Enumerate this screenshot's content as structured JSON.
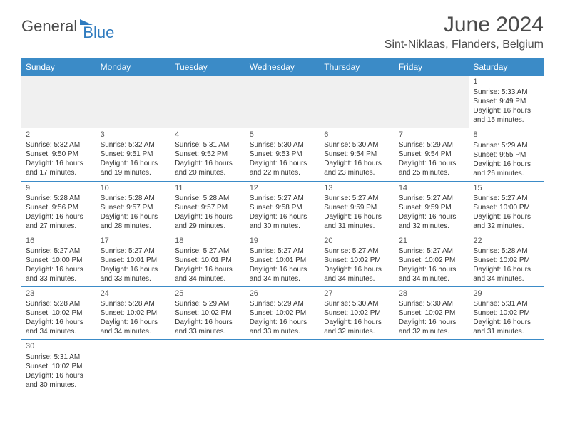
{
  "logo": {
    "part1": "General",
    "part2": "Blue"
  },
  "title": "June 2024",
  "location": "Sint-Niklaas, Flanders, Belgium",
  "colors": {
    "header_bg": "#3b8bc7",
    "header_fg": "#ffffff",
    "cell_border": "#3b8bc7",
    "text": "#333333",
    "logo_gray": "#4a4a4a",
    "logo_blue": "#2f7bbf",
    "spacer_bg": "#f0f0f0"
  },
  "daynames": [
    "Sunday",
    "Monday",
    "Tuesday",
    "Wednesday",
    "Thursday",
    "Friday",
    "Saturday"
  ],
  "weeks": [
    [
      null,
      null,
      null,
      null,
      null,
      null,
      {
        "n": "1",
        "sr": "Sunrise: 5:33 AM",
        "ss": "Sunset: 9:49 PM",
        "d1": "Daylight: 16 hours",
        "d2": "and 15 minutes."
      }
    ],
    [
      {
        "n": "2",
        "sr": "Sunrise: 5:32 AM",
        "ss": "Sunset: 9:50 PM",
        "d1": "Daylight: 16 hours",
        "d2": "and 17 minutes."
      },
      {
        "n": "3",
        "sr": "Sunrise: 5:32 AM",
        "ss": "Sunset: 9:51 PM",
        "d1": "Daylight: 16 hours",
        "d2": "and 19 minutes."
      },
      {
        "n": "4",
        "sr": "Sunrise: 5:31 AM",
        "ss": "Sunset: 9:52 PM",
        "d1": "Daylight: 16 hours",
        "d2": "and 20 minutes."
      },
      {
        "n": "5",
        "sr": "Sunrise: 5:30 AM",
        "ss": "Sunset: 9:53 PM",
        "d1": "Daylight: 16 hours",
        "d2": "and 22 minutes."
      },
      {
        "n": "6",
        "sr": "Sunrise: 5:30 AM",
        "ss": "Sunset: 9:54 PM",
        "d1": "Daylight: 16 hours",
        "d2": "and 23 minutes."
      },
      {
        "n": "7",
        "sr": "Sunrise: 5:29 AM",
        "ss": "Sunset: 9:54 PM",
        "d1": "Daylight: 16 hours",
        "d2": "and 25 minutes."
      },
      {
        "n": "8",
        "sr": "Sunrise: 5:29 AM",
        "ss": "Sunset: 9:55 PM",
        "d1": "Daylight: 16 hours",
        "d2": "and 26 minutes."
      }
    ],
    [
      {
        "n": "9",
        "sr": "Sunrise: 5:28 AM",
        "ss": "Sunset: 9:56 PM",
        "d1": "Daylight: 16 hours",
        "d2": "and 27 minutes."
      },
      {
        "n": "10",
        "sr": "Sunrise: 5:28 AM",
        "ss": "Sunset: 9:57 PM",
        "d1": "Daylight: 16 hours",
        "d2": "and 28 minutes."
      },
      {
        "n": "11",
        "sr": "Sunrise: 5:28 AM",
        "ss": "Sunset: 9:57 PM",
        "d1": "Daylight: 16 hours",
        "d2": "and 29 minutes."
      },
      {
        "n": "12",
        "sr": "Sunrise: 5:27 AM",
        "ss": "Sunset: 9:58 PM",
        "d1": "Daylight: 16 hours",
        "d2": "and 30 minutes."
      },
      {
        "n": "13",
        "sr": "Sunrise: 5:27 AM",
        "ss": "Sunset: 9:59 PM",
        "d1": "Daylight: 16 hours",
        "d2": "and 31 minutes."
      },
      {
        "n": "14",
        "sr": "Sunrise: 5:27 AM",
        "ss": "Sunset: 9:59 PM",
        "d1": "Daylight: 16 hours",
        "d2": "and 32 minutes."
      },
      {
        "n": "15",
        "sr": "Sunrise: 5:27 AM",
        "ss": "Sunset: 10:00 PM",
        "d1": "Daylight: 16 hours",
        "d2": "and 32 minutes."
      }
    ],
    [
      {
        "n": "16",
        "sr": "Sunrise: 5:27 AM",
        "ss": "Sunset: 10:00 PM",
        "d1": "Daylight: 16 hours",
        "d2": "and 33 minutes."
      },
      {
        "n": "17",
        "sr": "Sunrise: 5:27 AM",
        "ss": "Sunset: 10:01 PM",
        "d1": "Daylight: 16 hours",
        "d2": "and 33 minutes."
      },
      {
        "n": "18",
        "sr": "Sunrise: 5:27 AM",
        "ss": "Sunset: 10:01 PM",
        "d1": "Daylight: 16 hours",
        "d2": "and 34 minutes."
      },
      {
        "n": "19",
        "sr": "Sunrise: 5:27 AM",
        "ss": "Sunset: 10:01 PM",
        "d1": "Daylight: 16 hours",
        "d2": "and 34 minutes."
      },
      {
        "n": "20",
        "sr": "Sunrise: 5:27 AM",
        "ss": "Sunset: 10:02 PM",
        "d1": "Daylight: 16 hours",
        "d2": "and 34 minutes."
      },
      {
        "n": "21",
        "sr": "Sunrise: 5:27 AM",
        "ss": "Sunset: 10:02 PM",
        "d1": "Daylight: 16 hours",
        "d2": "and 34 minutes."
      },
      {
        "n": "22",
        "sr": "Sunrise: 5:28 AM",
        "ss": "Sunset: 10:02 PM",
        "d1": "Daylight: 16 hours",
        "d2": "and 34 minutes."
      }
    ],
    [
      {
        "n": "23",
        "sr": "Sunrise: 5:28 AM",
        "ss": "Sunset: 10:02 PM",
        "d1": "Daylight: 16 hours",
        "d2": "and 34 minutes."
      },
      {
        "n": "24",
        "sr": "Sunrise: 5:28 AM",
        "ss": "Sunset: 10:02 PM",
        "d1": "Daylight: 16 hours",
        "d2": "and 34 minutes."
      },
      {
        "n": "25",
        "sr": "Sunrise: 5:29 AM",
        "ss": "Sunset: 10:02 PM",
        "d1": "Daylight: 16 hours",
        "d2": "and 33 minutes."
      },
      {
        "n": "26",
        "sr": "Sunrise: 5:29 AM",
        "ss": "Sunset: 10:02 PM",
        "d1": "Daylight: 16 hours",
        "d2": "and 33 minutes."
      },
      {
        "n": "27",
        "sr": "Sunrise: 5:30 AM",
        "ss": "Sunset: 10:02 PM",
        "d1": "Daylight: 16 hours",
        "d2": "and 32 minutes."
      },
      {
        "n": "28",
        "sr": "Sunrise: 5:30 AM",
        "ss": "Sunset: 10:02 PM",
        "d1": "Daylight: 16 hours",
        "d2": "and 32 minutes."
      },
      {
        "n": "29",
        "sr": "Sunrise: 5:31 AM",
        "ss": "Sunset: 10:02 PM",
        "d1": "Daylight: 16 hours",
        "d2": "and 31 minutes."
      }
    ],
    [
      {
        "n": "30",
        "sr": "Sunrise: 5:31 AM",
        "ss": "Sunset: 10:02 PM",
        "d1": "Daylight: 16 hours",
        "d2": "and 30 minutes."
      },
      null,
      null,
      null,
      null,
      null,
      null
    ]
  ]
}
